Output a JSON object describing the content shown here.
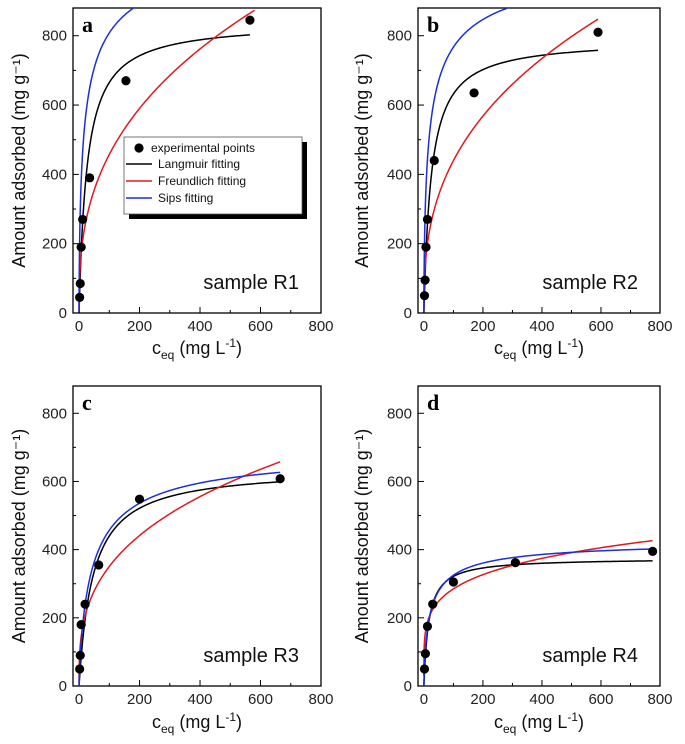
{
  "chart_data": [
    {
      "type": "scatter",
      "panel": "a",
      "sample_label": "sample R1",
      "xlabel_main": "c",
      "xlabel_sub": "eq",
      "xlabel_unit_open": " (mg L",
      "xlabel_unit_sup": "-1",
      "xlabel_unit_close": ")",
      "ylabel": "Amount adsorbed (mg g⁻¹)",
      "xlim": [
        -20,
        800
      ],
      "ylim": [
        0,
        880
      ],
      "xticks": [
        0,
        200,
        400,
        600,
        800
      ],
      "yticks": [
        0,
        200,
        400,
        600,
        800
      ],
      "points": [
        [
          2,
          45
        ],
        [
          4,
          85
        ],
        [
          7,
          190
        ],
        [
          12,
          270
        ],
        [
          35,
          390
        ],
        [
          155,
          670
        ],
        [
          565,
          845
        ]
      ],
      "fits": [
        {
          "name": "Langmuir fitting",
          "model": "langmuir",
          "qm": 840,
          "k": 0.038,
          "color": "#000000",
          "x_max": 565
        },
        {
          "name": "Freundlich fitting",
          "model": "freundlich",
          "kf": 84,
          "n": 0.368,
          "color": "#e0191e",
          "x_max": 580
        },
        {
          "name": "Sips fitting",
          "model": "sips",
          "qm": 1100,
          "k": 0.051,
          "n": 0.625,
          "color": "#1c2ee0",
          "x_max": 565
        }
      ],
      "legend": {
        "placement": "middle-right",
        "entries": [
          "experimental points",
          "Langmuir fitting",
          "Freundlich fitting",
          "Sips fitting"
        ]
      }
    },
    {
      "type": "scatter",
      "panel": "b",
      "sample_label": "sample R2",
      "xlabel_main": "c",
      "xlabel_sub": "eq",
      "xlabel_unit_open": " (mg L",
      "xlabel_unit_sup": "-1",
      "xlabel_unit_close": ")",
      "ylabel": "Amount adsorbed (mg g⁻¹)",
      "xlim": [
        -20,
        800
      ],
      "ylim": [
        0,
        880
      ],
      "xticks": [
        0,
        200,
        400,
        600,
        800
      ],
      "yticks": [
        0,
        200,
        400,
        600,
        800
      ],
      "points": [
        [
          2,
          50
        ],
        [
          4,
          95
        ],
        [
          7,
          190
        ],
        [
          12,
          270
        ],
        [
          35,
          440
        ],
        [
          170,
          635
        ],
        [
          590,
          810
        ]
      ],
      "fits": [
        {
          "name": "Langmuir fitting",
          "model": "langmuir",
          "qm": 790,
          "k": 0.04,
          "color": "#000000",
          "x_max": 590
        },
        {
          "name": "Freundlich fitting",
          "model": "freundlich",
          "kf": 80,
          "n": 0.37,
          "color": "#e0191e",
          "x_max": 590
        },
        {
          "name": "Sips fitting",
          "model": "sips",
          "qm": 1050,
          "k": 0.05,
          "n": 0.62,
          "color": "#1c2ee0",
          "x_max": 590
        }
      ]
    },
    {
      "type": "scatter",
      "panel": "c",
      "sample_label": "sample R3",
      "xlabel_main": "c",
      "xlabel_sub": "eq",
      "xlabel_unit_open": " (mg L",
      "xlabel_unit_sup": "-1",
      "xlabel_unit_close": ")",
      "ylabel": "Amount adsorbed (mg g⁻¹)",
      "xlim": [
        -20,
        800
      ],
      "ylim": [
        0,
        880
      ],
      "xticks": [
        0,
        200,
        400,
        600,
        800
      ],
      "yticks": [
        0,
        200,
        400,
        600,
        800
      ],
      "points": [
        [
          2,
          50
        ],
        [
          4,
          90
        ],
        [
          7,
          180
        ],
        [
          20,
          240
        ],
        [
          65,
          355
        ],
        [
          200,
          548
        ],
        [
          665,
          608
        ]
      ],
      "fits": [
        {
          "name": "Langmuir fitting",
          "model": "langmuir",
          "qm": 640,
          "k": 0.022,
          "color": "#000000",
          "x_max": 665
        },
        {
          "name": "Freundlich fitting",
          "model": "freundlich",
          "kf": 76,
          "n": 0.332,
          "color": "#e0191e",
          "x_max": 665
        },
        {
          "name": "Sips fitting",
          "model": "sips",
          "qm": 700,
          "k": 0.022,
          "n": 0.8,
          "color": "#1c2ee0",
          "x_max": 665
        }
      ]
    },
    {
      "type": "scatter",
      "panel": "d",
      "sample_label": "sample R4",
      "xlabel_main": "c",
      "xlabel_sub": "eq",
      "xlabel_unit_open": " (mg L",
      "xlabel_unit_sup": "-1",
      "xlabel_unit_close": ")",
      "ylabel": "Amount adsorbed (mg g⁻¹)",
      "xlim": [
        -20,
        800
      ],
      "ylim": [
        0,
        880
      ],
      "xticks": [
        0,
        200,
        400,
        600,
        800
      ],
      "yticks": [
        0,
        200,
        400,
        600,
        800
      ],
      "points": [
        [
          2,
          50
        ],
        [
          5,
          95
        ],
        [
          12,
          175
        ],
        [
          30,
          240
        ],
        [
          100,
          305
        ],
        [
          310,
          362
        ],
        [
          775,
          395
        ]
      ],
      "fits": [
        {
          "name": "Langmuir fitting",
          "model": "langmuir",
          "qm": 375,
          "k": 0.06,
          "color": "#000000",
          "x_max": 775
        },
        {
          "name": "Freundlich fitting",
          "model": "freundlich",
          "kf": 115,
          "n": 0.197,
          "color": "#e0191e",
          "x_max": 775
        },
        {
          "name": "Sips fitting",
          "model": "sips",
          "qm": 430,
          "k": 0.045,
          "n": 0.75,
          "color": "#1c2ee0",
          "x_max": 775
        }
      ]
    }
  ]
}
